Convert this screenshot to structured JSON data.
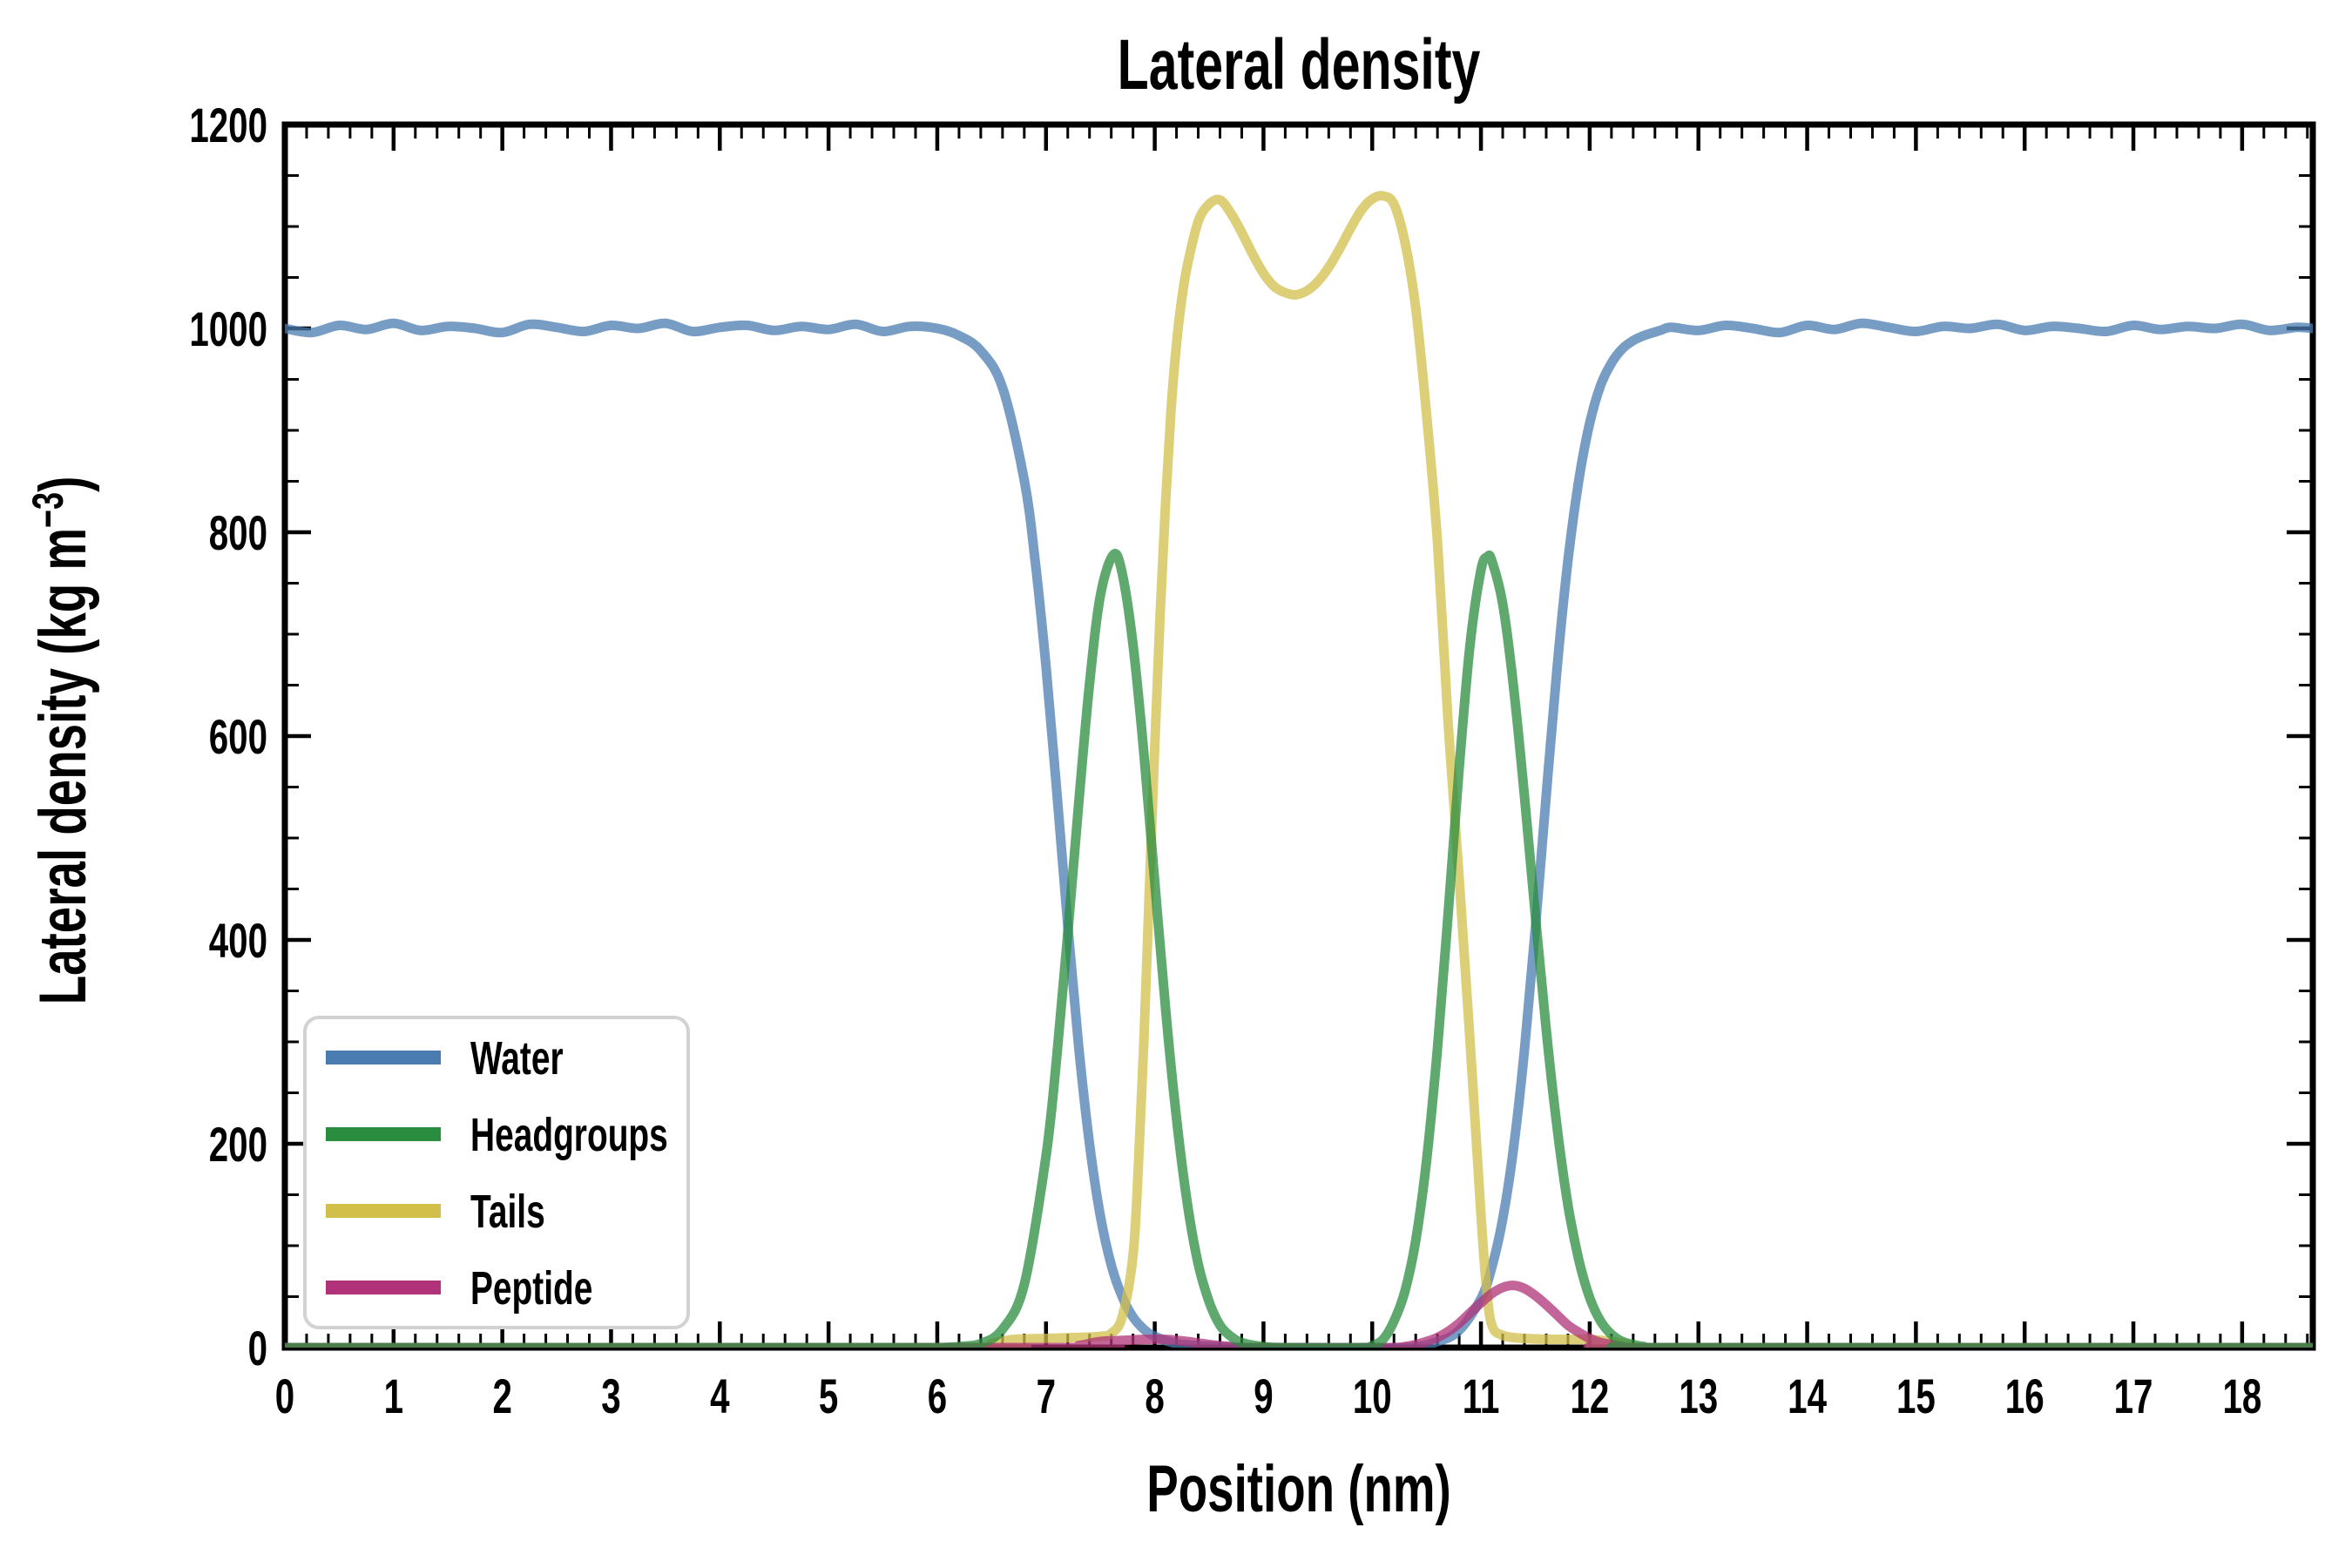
{
  "title": "Lateral density",
  "x_axis": {
    "label": "Position (nm)",
    "min": 0,
    "max": 18.65,
    "major_tick_values": [
      0,
      1,
      2,
      3,
      4,
      5,
      6,
      7,
      8,
      9,
      10,
      11,
      12,
      13,
      14,
      15,
      16,
      17,
      18
    ],
    "major_tick_labels": [
      "0",
      "1",
      "2",
      "3",
      "4",
      "5",
      "6",
      "7",
      "8",
      "9",
      "10",
      "11",
      "12",
      "13",
      "14",
      "15",
      "16",
      "17",
      "18"
    ],
    "minor_step": 0.2
  },
  "y_axis": {
    "label": "Lateral density (kg m⁻³)",
    "label_parts": {
      "pre": "Lateral density (kg m",
      "sup": "−3",
      "post": ")"
    },
    "min": 0,
    "max": 1200,
    "major_tick_values": [
      0,
      200,
      400,
      600,
      800,
      1000,
      1200
    ],
    "major_tick_labels": [
      "0",
      "200",
      "400",
      "600",
      "800",
      "1000",
      "1200"
    ],
    "minor_step": 50
  },
  "legend": {
    "position": "lower-left",
    "entries": [
      {
        "label": "Water",
        "color": "#4a7cb2"
      },
      {
        "label": "Headgroups",
        "color": "#2a8c3e"
      },
      {
        "label": "Tails",
        "color": "#d2bf4a"
      },
      {
        "label": "Peptide",
        "color": "#b03278"
      }
    ]
  },
  "chart_data": {
    "type": "line",
    "title": "Lateral density",
    "xlabel": "Position (nm)",
    "ylabel": "Lateral density (kg m⁻³)",
    "xlim": [
      0,
      18.65
    ],
    "ylim": [
      0,
      1200
    ],
    "grid": false,
    "tick_direction": "in",
    "line_width": 11,
    "line_opacity": 0.75,
    "draw_order": [
      "Water",
      "Tails",
      "Peptide",
      "Headgroups"
    ],
    "series": [
      {
        "name": "Water",
        "color": "#4a7cb2",
        "points": [
          [
            0,
            1000
          ],
          [
            0.25,
            996
          ],
          [
            0.5,
            1003
          ],
          [
            0.75,
            999
          ],
          [
            1,
            1005
          ],
          [
            1.25,
            998
          ],
          [
            1.5,
            1002
          ],
          [
            1.75,
            1000
          ],
          [
            2,
            996
          ],
          [
            2.25,
            1004
          ],
          [
            2.5,
            1001
          ],
          [
            2.75,
            997
          ],
          [
            3,
            1003
          ],
          [
            3.25,
            1000
          ],
          [
            3.5,
            1005
          ],
          [
            3.75,
            997
          ],
          [
            4,
            1001
          ],
          [
            4.25,
            1003
          ],
          [
            4.5,
            998
          ],
          [
            4.75,
            1002
          ],
          [
            5,
            999
          ],
          [
            5.25,
            1004
          ],
          [
            5.5,
            997
          ],
          [
            5.75,
            1002
          ],
          [
            6,
            1000
          ],
          [
            6.2,
            993
          ],
          [
            6.4,
            978
          ],
          [
            6.6,
            942
          ],
          [
            6.8,
            851
          ],
          [
            6.9,
            772
          ],
          [
            7,
            668
          ],
          [
            7.1,
            544
          ],
          [
            7.2,
            415
          ],
          [
            7.3,
            296
          ],
          [
            7.4,
            200
          ],
          [
            7.5,
            129
          ],
          [
            7.6,
            81
          ],
          [
            7.7,
            50
          ],
          [
            7.8,
            30
          ],
          [
            7.9,
            18
          ],
          [
            8,
            11
          ],
          [
            8.2,
            4
          ],
          [
            8.4,
            2
          ],
          [
            8.6,
            1
          ],
          [
            8.8,
            0
          ],
          [
            9.5,
            0
          ],
          [
            10.3,
            0
          ],
          [
            10.6,
            6
          ],
          [
            10.8,
            17
          ],
          [
            11,
            48
          ],
          [
            11.1,
            79
          ],
          [
            11.2,
            126
          ],
          [
            11.3,
            196
          ],
          [
            11.4,
            292
          ],
          [
            11.5,
            411
          ],
          [
            11.6,
            542
          ],
          [
            11.7,
            667
          ],
          [
            11.8,
            772
          ],
          [
            11.9,
            851
          ],
          [
            12,
            907
          ],
          [
            12.1,
            944
          ],
          [
            12.2,
            966
          ],
          [
            12.3,
            980
          ],
          [
            12.4,
            988
          ],
          [
            12.5,
            993
          ],
          [
            12.65,
            998
          ],
          [
            12.75,
            1001
          ],
          [
            13,
            998
          ],
          [
            13.25,
            1003
          ],
          [
            13.5,
            1000
          ],
          [
            13.75,
            996
          ],
          [
            14,
            1003
          ],
          [
            14.25,
            999
          ],
          [
            14.5,
            1005
          ],
          [
            14.75,
            1001
          ],
          [
            15,
            997
          ],
          [
            15.25,
            1002
          ],
          [
            15.5,
            1000
          ],
          [
            15.75,
            1004
          ],
          [
            16,
            998
          ],
          [
            16.25,
            1002
          ],
          [
            16.5,
            1000
          ],
          [
            16.75,
            997
          ],
          [
            17,
            1003
          ],
          [
            17.25,
            999
          ],
          [
            17.5,
            1002
          ],
          [
            17.75,
            1000
          ],
          [
            18,
            1004
          ],
          [
            18.25,
            998
          ],
          [
            18.5,
            1001
          ],
          [
            18.65,
            1000
          ]
        ]
      },
      {
        "name": "Tails",
        "color": "#d2bf4a",
        "points": [
          [
            0,
            0
          ],
          [
            6.3,
            0
          ],
          [
            6.5,
            4
          ],
          [
            6.7,
            8
          ],
          [
            7,
            9
          ],
          [
            7.3,
            10
          ],
          [
            7.5,
            11
          ],
          [
            7.6,
            14
          ],
          [
            7.7,
            30
          ],
          [
            7.8,
            90
          ],
          [
            7.85,
            180
          ],
          [
            7.9,
            300
          ],
          [
            7.95,
            450
          ],
          [
            8,
            590
          ],
          [
            8.05,
            720
          ],
          [
            8.1,
            830
          ],
          [
            8.15,
            920
          ],
          [
            8.2,
            985
          ],
          [
            8.25,
            1030
          ],
          [
            8.3,
            1062
          ],
          [
            8.4,
            1105
          ],
          [
            8.5,
            1122
          ],
          [
            8.6,
            1126
          ],
          [
            8.7,
            1113
          ],
          [
            8.8,
            1094
          ],
          [
            8.9,
            1073
          ],
          [
            9,
            1054
          ],
          [
            9.1,
            1041
          ],
          [
            9.2,
            1035
          ],
          [
            9.3,
            1033
          ],
          [
            9.4,
            1037
          ],
          [
            9.5,
            1046
          ],
          [
            9.6,
            1060
          ],
          [
            9.7,
            1078
          ],
          [
            9.8,
            1098
          ],
          [
            9.9,
            1116
          ],
          [
            10,
            1127
          ],
          [
            10.1,
            1130
          ],
          [
            10.2,
            1122
          ],
          [
            10.3,
            1085
          ],
          [
            10.4,
            1020
          ],
          [
            10.5,
            915
          ],
          [
            10.6,
            790
          ],
          [
            10.7,
            610
          ],
          [
            10.8,
            460
          ],
          [
            10.9,
            300
          ],
          [
            11,
            130
          ],
          [
            11.05,
            60
          ],
          [
            11.1,
            22
          ],
          [
            11.2,
            12
          ],
          [
            11.4,
            9
          ],
          [
            11.7,
            8
          ],
          [
            12,
            8
          ],
          [
            12.2,
            6
          ],
          [
            12.35,
            3
          ],
          [
            12.5,
            0
          ],
          [
            18.65,
            0
          ]
        ]
      },
      {
        "name": "Peptide",
        "color": "#b03278",
        "points": [
          [
            0,
            0
          ],
          [
            7.1,
            0
          ],
          [
            7.3,
            2
          ],
          [
            7.5,
            6
          ],
          [
            7.7,
            7
          ],
          [
            7.9,
            8
          ],
          [
            8.1,
            8
          ],
          [
            8.3,
            6
          ],
          [
            8.5,
            3
          ],
          [
            8.7,
            1
          ],
          [
            8.9,
            0
          ],
          [
            10.1,
            0
          ],
          [
            10.3,
            1
          ],
          [
            10.4,
            3
          ],
          [
            10.5,
            6
          ],
          [
            10.6,
            10
          ],
          [
            10.7,
            16
          ],
          [
            10.8,
            24
          ],
          [
            10.9,
            34
          ],
          [
            11,
            44
          ],
          [
            11.1,
            53
          ],
          [
            11.2,
            59
          ],
          [
            11.3,
            61
          ],
          [
            11.4,
            58
          ],
          [
            11.5,
            51
          ],
          [
            11.6,
            42
          ],
          [
            11.7,
            32
          ],
          [
            11.8,
            22
          ],
          [
            11.9,
            15
          ],
          [
            12,
            9
          ],
          [
            12.1,
            5
          ],
          [
            12.2,
            3
          ],
          [
            12.3,
            1
          ],
          [
            12.5,
            0
          ],
          [
            18.65,
            0
          ]
        ]
      },
      {
        "name": "Headgroups",
        "color": "#2a8c3e",
        "points": [
          [
            0,
            0
          ],
          [
            5.8,
            0
          ],
          [
            6,
            0
          ],
          [
            6.2,
            1
          ],
          [
            6.4,
            4
          ],
          [
            6.6,
            18
          ],
          [
            6.8,
            62
          ],
          [
            7,
            188
          ],
          [
            7.1,
            287
          ],
          [
            7.2,
            406
          ],
          [
            7.3,
            533
          ],
          [
            7.4,
            651
          ],
          [
            7.5,
            738
          ],
          [
            7.62,
            778
          ],
          [
            7.7,
            760
          ],
          [
            7.8,
            690
          ],
          [
            7.9,
            583
          ],
          [
            8,
            457
          ],
          [
            8.1,
            332
          ],
          [
            8.2,
            225
          ],
          [
            8.3,
            141
          ],
          [
            8.4,
            82
          ],
          [
            8.5,
            45
          ],
          [
            8.6,
            22
          ],
          [
            8.7,
            11
          ],
          [
            8.8,
            5
          ],
          [
            9,
            1
          ],
          [
            9.2,
            0
          ],
          [
            9.9,
            0
          ],
          [
            10,
            2
          ],
          [
            10.1,
            8
          ],
          [
            10.2,
            26
          ],
          [
            10.3,
            55
          ],
          [
            10.4,
            105
          ],
          [
            10.5,
            184
          ],
          [
            10.6,
            294
          ],
          [
            10.7,
            428
          ],
          [
            10.8,
            569
          ],
          [
            10.9,
            690
          ],
          [
            11,
            763
          ],
          [
            11.06,
            776
          ],
          [
            11.1,
            772
          ],
          [
            11.2,
            730
          ],
          [
            11.3,
            648
          ],
          [
            11.4,
            541
          ],
          [
            11.5,
            424
          ],
          [
            11.6,
            312
          ],
          [
            11.7,
            216
          ],
          [
            11.8,
            140
          ],
          [
            11.9,
            86
          ],
          [
            12,
            49
          ],
          [
            12.1,
            26
          ],
          [
            12.2,
            13
          ],
          [
            12.3,
            6
          ],
          [
            12.4,
            3
          ],
          [
            12.5,
            1
          ],
          [
            12.7,
            0
          ],
          [
            18.65,
            0
          ]
        ]
      }
    ]
  }
}
